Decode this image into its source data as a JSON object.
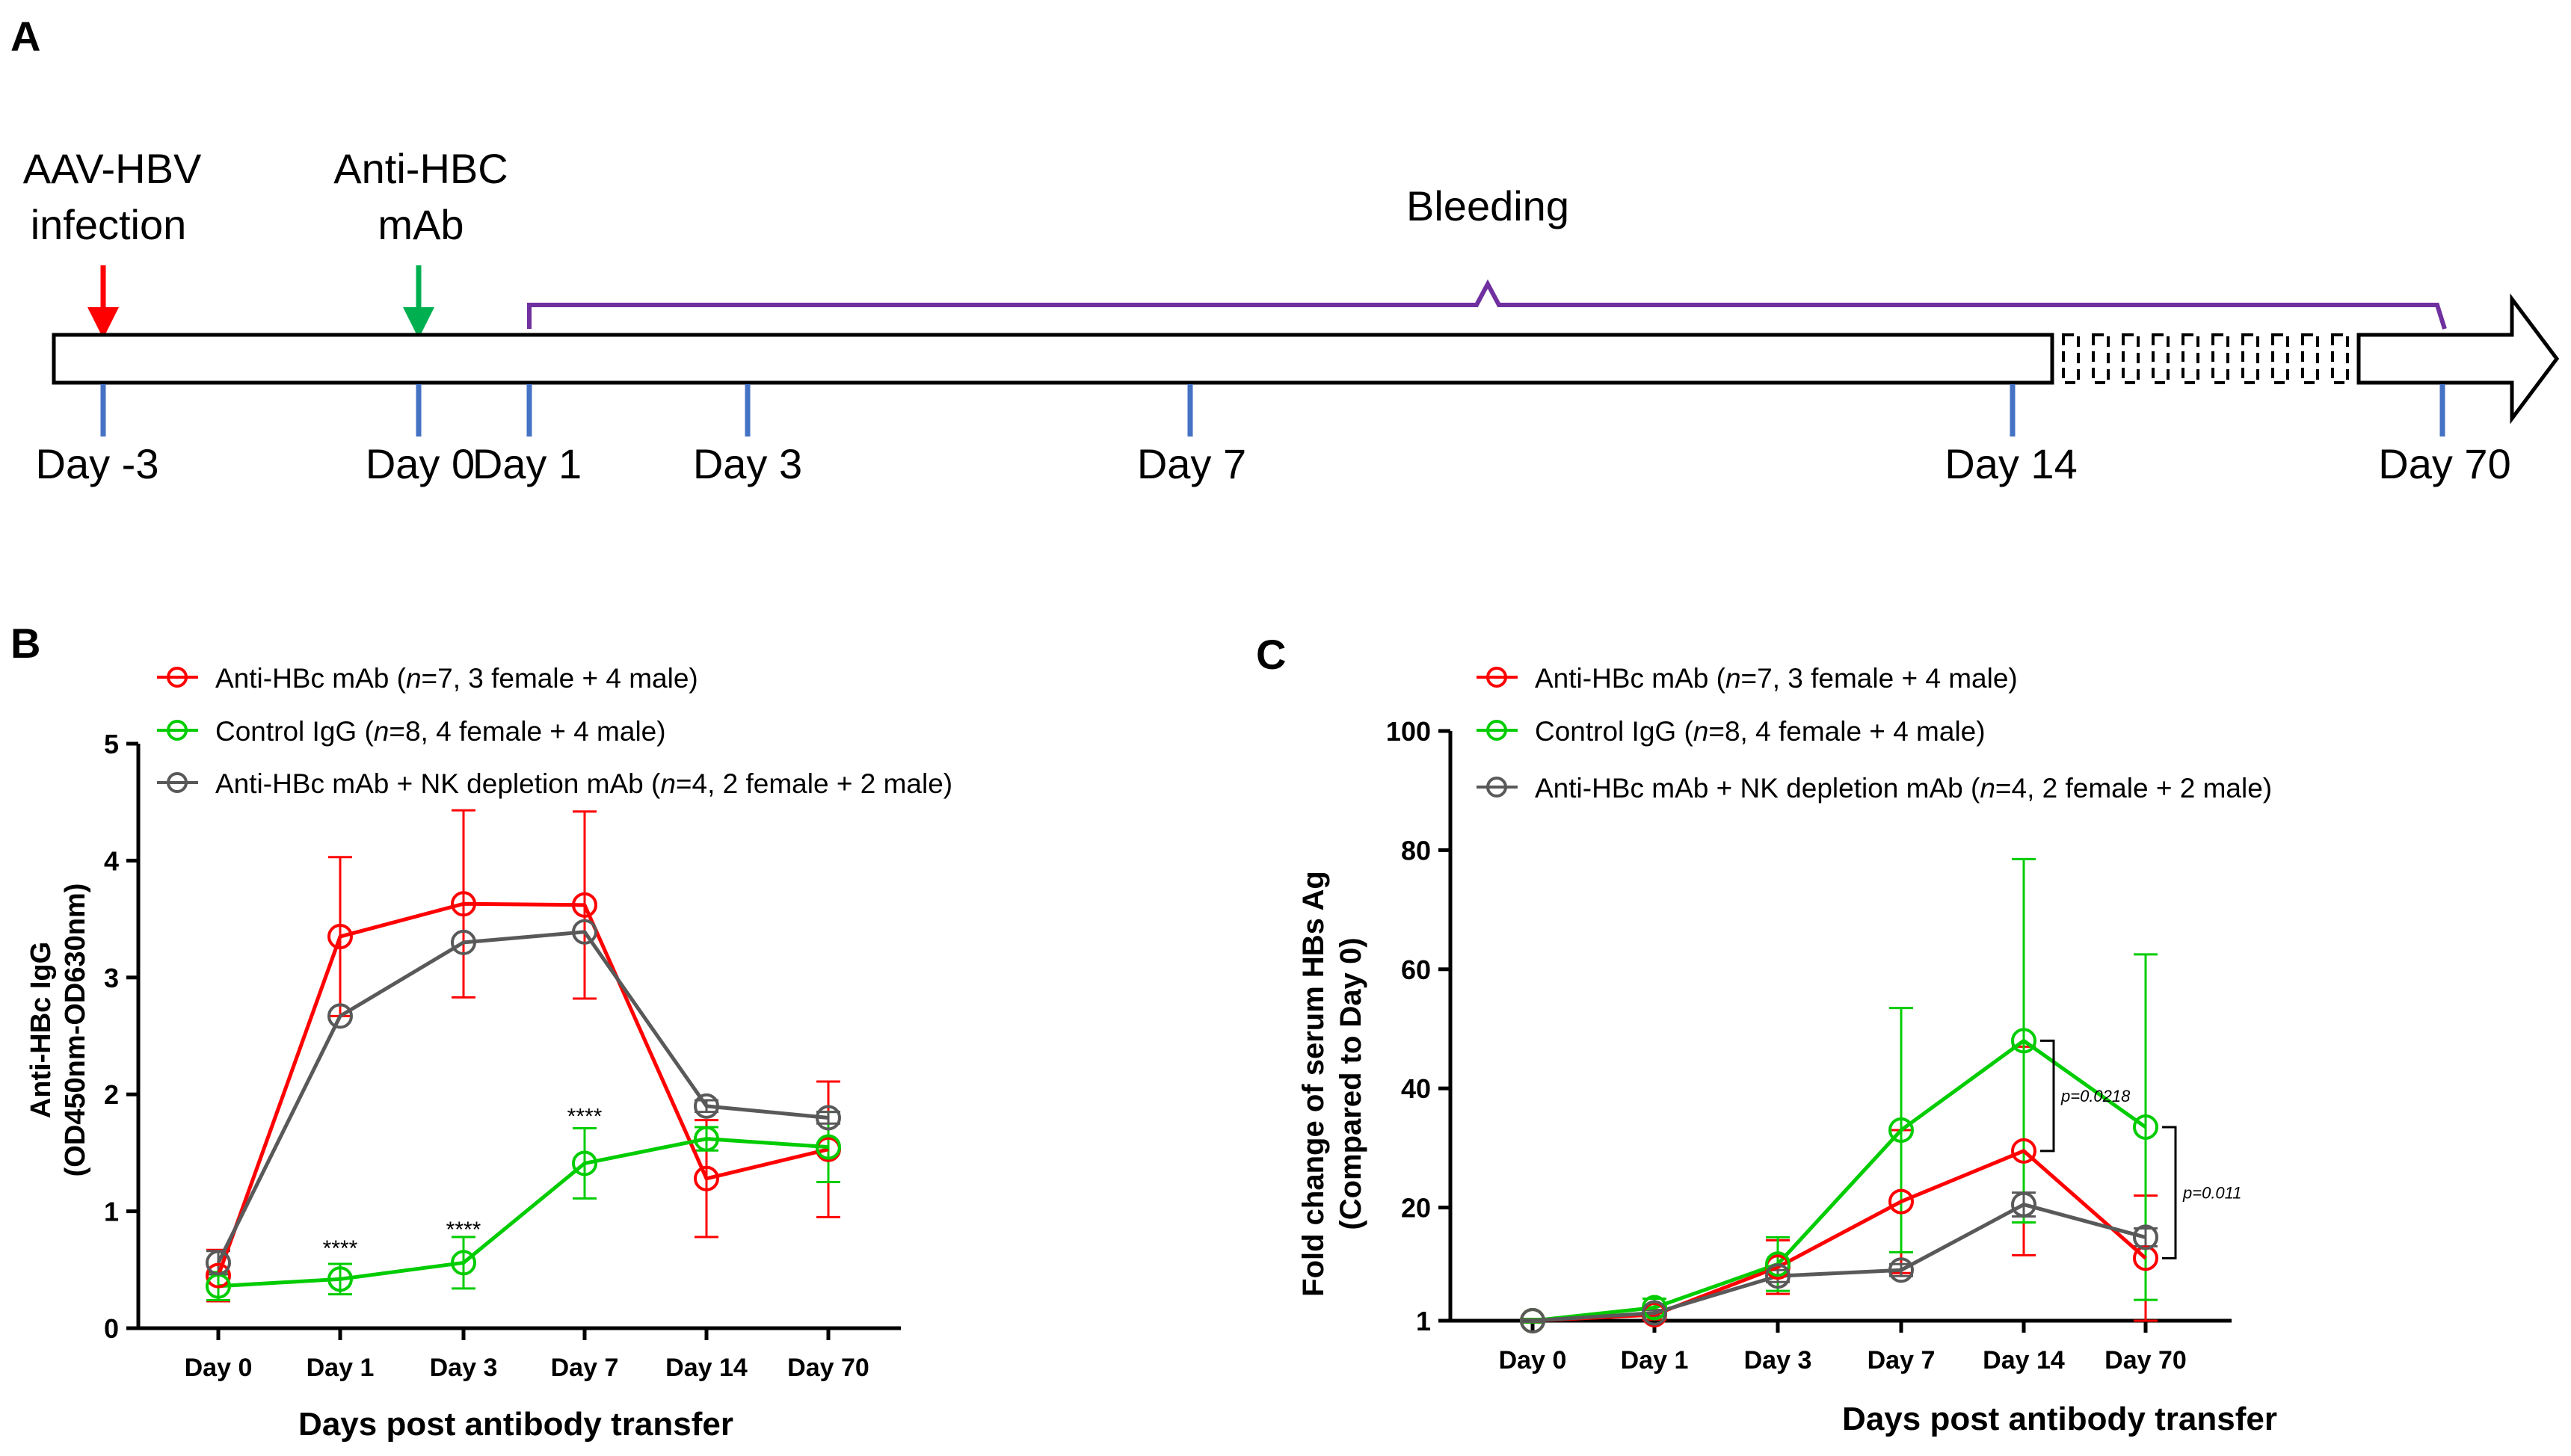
{
  "panel_a": {
    "label": "A",
    "events": [
      {
        "line1": "AAV-HBV",
        "line2": "infection",
        "arrow_color": "#ff0000"
      },
      {
        "line1": "Anti-HBC",
        "line2": "mAb",
        "arrow_color": "#00b050"
      }
    ],
    "bleeding_label": "Bleeding",
    "days": [
      "Day -3",
      "Day 0",
      "Day 1",
      "Day 3",
      "Day 7",
      "Day 14",
      "Day 70"
    ],
    "bracket_color": "#7030a0",
    "tick_color": "#4472c4"
  },
  "panel_b": {
    "label": "B",
    "chart_data": {
      "type": "line",
      "categories": [
        "Day 0",
        "Day 1",
        "Day 3",
        "Day 7",
        "Day 14",
        "Day 70"
      ],
      "ylim": [
        0,
        5
      ],
      "yticks": [
        "0",
        "1",
        "2",
        "3",
        "4",
        "5"
      ],
      "ylabel_line1": "Anti-HBc IgG",
      "ylabel_line2": "(OD450nm-OD630nm)",
      "xlabel": "Days post antibody transfer",
      "significance": [
        {
          "category": 1,
          "text": "****",
          "y": 0.62
        },
        {
          "category": 2,
          "text": "****",
          "y": 0.78
        },
        {
          "category": 3,
          "text": "****",
          "y": 1.75
        }
      ],
      "series": [
        {
          "key": "red",
          "color": "#ff0000",
          "name": "Anti-HBc mAb (",
          "n_italic": "n",
          "name_rest": "=7, 3 female + 4 male)",
          "values": [
            0.45,
            3.35,
            3.63,
            3.62,
            1.28,
            1.53
          ],
          "err": [
            0.22,
            0.68,
            0.8,
            0.8,
            0.5,
            0.58
          ]
        },
        {
          "key": "green",
          "color": "#00cc00",
          "name": "Control IgG (",
          "n_italic": "n",
          "name_rest": "=8, 4 female + 4 male)",
          "values": [
            0.36,
            0.42,
            0.56,
            1.41,
            1.62,
            1.55
          ],
          "err": [
            0.12,
            0.13,
            0.22,
            0.3,
            0.1,
            0.3
          ]
        },
        {
          "key": "gray",
          "color": "#595959",
          "name": "Anti-HBc mAb + NK depletion mAb (",
          "n_italic": "n",
          "name_rest": "=4, 2 female + 2 male)",
          "values": [
            0.56,
            2.67,
            3.3,
            3.39,
            1.9,
            1.8
          ],
          "err": [
            0.1,
            0.0,
            0.0,
            0.0,
            0.05,
            0.05
          ]
        }
      ]
    }
  },
  "panel_c": {
    "label": "C",
    "chart_data": {
      "type": "line",
      "categories": [
        "Day 0",
        "Day 1",
        "Day 3",
        "Day 7",
        "Day 14",
        "Day 70"
      ],
      "ylim": [
        1,
        100
      ],
      "yticks": [
        {
          "label": "1",
          "value": 1
        },
        {
          "label": "20",
          "value": 20
        },
        {
          "label": "40",
          "value": 40
        },
        {
          "label": "60",
          "value": 60
        },
        {
          "label": "80",
          "value": 80
        },
        {
          "label": "100",
          "value": 100
        }
      ],
      "ylabel_line1": "Fold change of serum HBs Ag",
      "ylabel_line2": "(Compared to Day 0)",
      "xlabel": "Days post antibody transfer",
      "pvalues": [
        {
          "text": "p=0.0218",
          "from": 48,
          "to": 29.5,
          "category": 4
        },
        {
          "text": "p=0.011",
          "from": 33.5,
          "to": 11.5,
          "category": 5
        }
      ],
      "series": [
        {
          "key": "red",
          "color": "#ff0000",
          "name": "Anti-HBc mAb (",
          "n_italic": "n",
          "name_rest": "=7, 3 female + 4 male)",
          "values": [
            1,
            2,
            10,
            21,
            29.5,
            11.5
          ],
          "err": [
            0.3,
            0.8,
            4.5,
            12,
            17.5,
            10.5
          ]
        },
        {
          "key": "green",
          "color": "#00cc00",
          "name": "Control IgG (",
          "n_italic": "n",
          "name_rest": "=8, 4 female + 4 male)",
          "values": [
            1,
            3.2,
            10.5,
            33,
            48,
            33.5
          ],
          "err": [
            0.3,
            1.5,
            4.5,
            20.5,
            30.5,
            29
          ]
        },
        {
          "key": "gray",
          "color": "#595959",
          "name": "Anti-HBc mAb + NK depletion mAb (",
          "n_italic": "n",
          "name_rest": "=4, 2 female + 2 male)",
          "values": [
            1,
            2.3,
            8.5,
            9.5,
            20.5,
            15
          ],
          "err": [
            0.2,
            0.5,
            1.0,
            1.0,
            2.0,
            1.5
          ]
        }
      ]
    }
  }
}
